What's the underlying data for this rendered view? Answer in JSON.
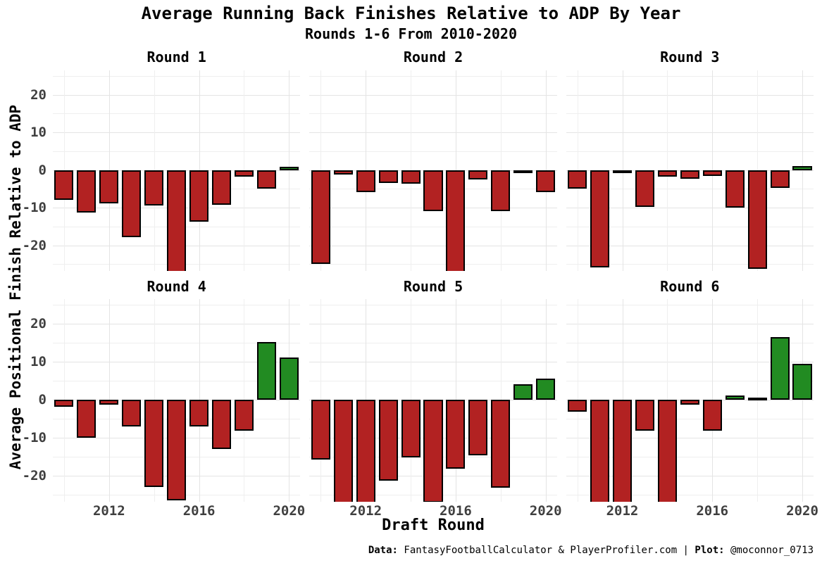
{
  "header": {
    "title": "Average Running Back Finishes Relative to ADP By Year",
    "subtitle": "Rounds 1-6 From 2010-2020"
  },
  "axes": {
    "x_title": "Draft Round",
    "y_title": "Average Positional Finish Relative to ADP"
  },
  "footer": {
    "data_label": "Data:",
    "data_value": " FantasyFootballCalculator & PlayerProfiler.com ",
    "separator": "|",
    "plot_label": " Plot:",
    "plot_value": " @moconnor_0713"
  },
  "chart_data": {
    "type": "bar",
    "title": "Average Running Back Finishes Relative to ADP By Year",
    "subtitle": "Rounds 1-6 From 2010-2020",
    "xlabel": "Draft Round",
    "ylabel": "Average Positional Finish Relative to ADP",
    "x": [
      2010,
      2011,
      2012,
      2013,
      2014,
      2015,
      2016,
      2017,
      2018,
      2019,
      2020
    ],
    "series": [
      {
        "name": "Round 1",
        "values": [
          -8.0,
          -11.2,
          -8.9,
          -17.8,
          -9.5,
          -28.0,
          -13.8,
          -9.2,
          -1.7,
          -5.0,
          0.8
        ]
      },
      {
        "name": "Round 2",
        "values": [
          -24.9,
          -1.1,
          -5.8,
          -3.4,
          -3.6,
          -10.9,
          -28.0,
          -2.5,
          -10.9,
          -0.8,
          -5.9
        ]
      },
      {
        "name": "Round 3",
        "values": [
          -4.9,
          -25.9,
          -0.2,
          -9.8,
          -1.7,
          -2.3,
          -1.6,
          -9.9,
          -26.3,
          -4.7,
          1.0
        ]
      },
      {
        "name": "Round 4",
        "values": [
          -1.9,
          -10.0,
          -1.2,
          -7.0,
          -22.9,
          -26.5,
          -7.0,
          -13.0,
          -8.1,
          15.3,
          11.1
        ]
      },
      {
        "name": "Round 5",
        "values": [
          -15.7,
          -28.0,
          -28.0,
          -21.2,
          -15.2,
          -27.0,
          -18.1,
          -14.6,
          -23.1,
          4.1,
          5.6
        ]
      },
      {
        "name": "Round 6",
        "values": [
          -3.1,
          -28.0,
          -28.0,
          -8.1,
          -28.0,
          -1.3,
          -8.1,
          1.2,
          0.6,
          16.5,
          9.5
        ]
      }
    ],
    "value_sign_colors": {
      "positive": "#228B22",
      "negative": "#B22222"
    },
    "bar_border_color": "#000000",
    "ylim": [
      -26.8,
      26.5
    ],
    "clip_note": "values below -26.8 are drawn clipped at panel bottom",
    "y_ticks": [
      20,
      10,
      0,
      -10,
      -20
    ],
    "y_tick_labels": [
      "20",
      "10",
      "0",
      "-10",
      "-20"
    ],
    "y_gridlines": [
      25,
      20,
      15,
      10,
      5,
      0,
      -5,
      -10,
      -15,
      -20,
      -25
    ],
    "x_tick_years": [
      2012,
      2016,
      2020
    ],
    "x_tick_labels": [
      "2012",
      "2016",
      "2020"
    ],
    "x_gridline_years": [
      2010,
      2012,
      2014,
      2016,
      2018,
      2020
    ],
    "grid": "on",
    "legend": "none",
    "facet_layout": {
      "rows": 2,
      "cols": 3
    }
  }
}
